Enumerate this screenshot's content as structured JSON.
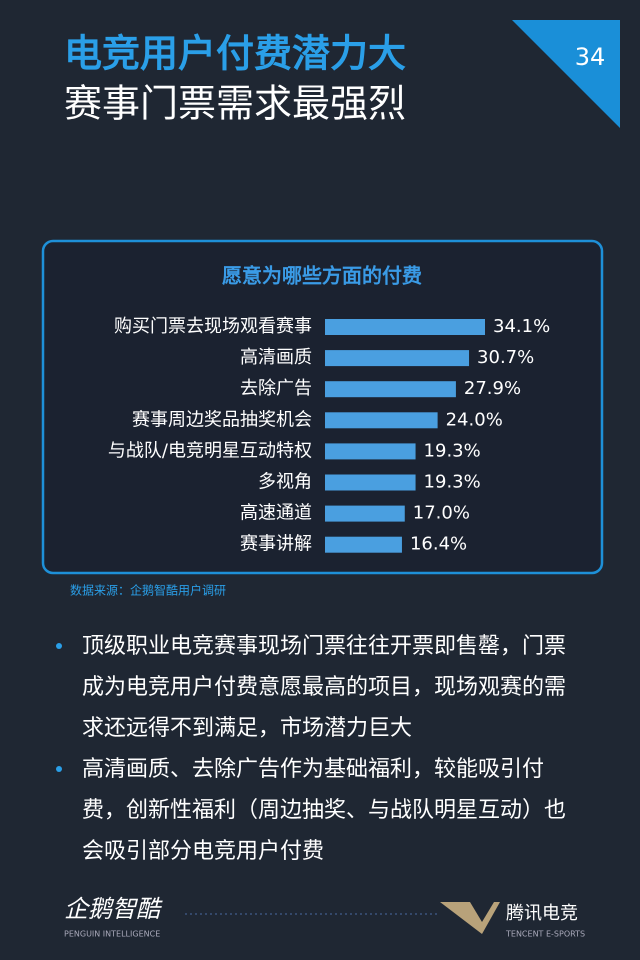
{
  "header": {
    "title_line1": "电竞用户付费潜力大",
    "title_line2": "赛事门票需求最强烈",
    "page_number": "34"
  },
  "chart_data": {
    "type": "bar",
    "orientation": "horizontal",
    "title": "愿意为哪些方面的付费",
    "color": "#4a9fe0",
    "categories": [
      "购买门票去现场观看赛事",
      "高清画质",
      "去除广告",
      "赛事周边奖品抽奖机会",
      "与战队/电竞明星互动特权",
      "多视角",
      "高速通道",
      "赛事讲解"
    ],
    "values": [
      34.1,
      30.7,
      27.9,
      24.0,
      19.3,
      19.3,
      17.0,
      16.4
    ],
    "value_labels": [
      "34.1%",
      "30.7%",
      "27.9%",
      "24.0%",
      "19.3%",
      "19.3%",
      "17.0%",
      "16.4%"
    ]
  },
  "source": "数据来源：企鹅智酷用户调研",
  "bullets": [
    "顶级职业电竞赛事现场门票往往开票即售罄，门票成为电竞用户付费意愿最高的项目，现场观赛的需求还远得不到满足，市场潜力巨大",
    "高清画质、去除广告作为基础福利，较能吸引付费，创新性福利（周边抽奖、与战队明星互动）也会吸引部分电竞用户付费"
  ],
  "footer": {
    "left_logo": "企鹅智酷",
    "left_sub": "PENGUIN INTELLIGENCE",
    "right_logo": "腾讯电竞",
    "right_sub": "TENCENT E-SPORTS"
  }
}
